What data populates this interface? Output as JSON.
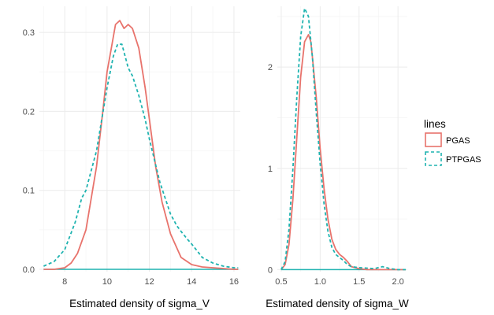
{
  "colors": {
    "PGAS": "#e8736c",
    "PTPGAS": "#1fb3b0"
  },
  "legend": {
    "title": "lines",
    "items": [
      "PGAS",
      "PTPGAS"
    ]
  },
  "chart_data": [
    {
      "type": "line",
      "xlabel": "Estimated density of sigma_V",
      "ylabel": "",
      "xlim": [
        6.8,
        16.3
      ],
      "ylim": [
        -0.003,
        0.333
      ],
      "xticks": [
        8,
        10,
        12,
        14,
        16
      ],
      "xtick_labels": [
        "8",
        "10",
        "12",
        "14",
        "16"
      ],
      "yticks": [
        0.0,
        0.1,
        0.2,
        0.3
      ],
      "ytick_labels": [
        "0.0",
        "0.1",
        "0.2",
        "0.3"
      ],
      "series": [
        {
          "name": "PGAS",
          "style": "solid",
          "x": [
            7.0,
            7.5,
            8.0,
            8.3,
            8.6,
            9.0,
            9.5,
            9.8,
            10.0,
            10.2,
            10.4,
            10.6,
            10.8,
            11.0,
            11.2,
            11.5,
            11.8,
            12.0,
            12.3,
            12.6,
            13.0,
            13.5,
            14.0,
            14.5,
            15.0,
            15.5,
            16.0,
            16.2
          ],
          "y": [
            0.0,
            0.0,
            0.002,
            0.008,
            0.02,
            0.05,
            0.13,
            0.2,
            0.25,
            0.28,
            0.31,
            0.315,
            0.305,
            0.31,
            0.305,
            0.28,
            0.23,
            0.19,
            0.13,
            0.085,
            0.045,
            0.015,
            0.006,
            0.003,
            0.002,
            0.001,
            0.0,
            0.0
          ]
        },
        {
          "name": "PTPGAS",
          "style": "dashed",
          "x": [
            7.0,
            7.5,
            8.0,
            8.5,
            8.8,
            9.0,
            9.5,
            10.0,
            10.3,
            10.5,
            10.7,
            10.9,
            11.0,
            11.2,
            11.5,
            11.8,
            12.0,
            12.5,
            13.0,
            13.3,
            13.5,
            13.8,
            14.0,
            14.3,
            14.5,
            15.0,
            15.5,
            16.0,
            16.2
          ],
          "y": [
            0.004,
            0.01,
            0.025,
            0.06,
            0.09,
            0.1,
            0.15,
            0.23,
            0.27,
            0.285,
            0.285,
            0.265,
            0.255,
            0.245,
            0.22,
            0.19,
            0.165,
            0.11,
            0.07,
            0.055,
            0.048,
            0.038,
            0.032,
            0.022,
            0.015,
            0.008,
            0.004,
            0.002,
            0.002
          ]
        }
      ],
      "baseline": {
        "y": 0,
        "color": "#1fb3b0"
      }
    },
    {
      "type": "line",
      "xlabel": "Estimated density of sigma_W",
      "ylabel": "",
      "xlim": [
        0.45,
        2.12
      ],
      "ylim": [
        -0.02,
        2.6
      ],
      "xticks": [
        0.5,
        1.0,
        1.5,
        2.0
      ],
      "xtick_labels": [
        "0.5",
        "1.0",
        "1.5",
        "2.0"
      ],
      "yticks": [
        0,
        1,
        2
      ],
      "ytick_labels": [
        "0",
        "1",
        "2"
      ],
      "series": [
        {
          "name": "PGAS",
          "style": "solid",
          "x": [
            0.5,
            0.55,
            0.6,
            0.65,
            0.7,
            0.75,
            0.8,
            0.85,
            0.88,
            0.9,
            0.95,
            1.0,
            1.05,
            1.1,
            1.15,
            1.2,
            1.25,
            1.3,
            1.35,
            1.4,
            1.5,
            1.6,
            1.8,
            2.1
          ],
          "y": [
            0.0,
            0.05,
            0.25,
            0.7,
            1.3,
            1.9,
            2.25,
            2.32,
            2.25,
            2.1,
            1.7,
            1.2,
            0.8,
            0.5,
            0.3,
            0.2,
            0.15,
            0.12,
            0.08,
            0.03,
            0.01,
            0.0,
            0.0,
            0.0
          ]
        },
        {
          "name": "PTPGAS",
          "style": "dashed",
          "x": [
            0.5,
            0.55,
            0.6,
            0.65,
            0.7,
            0.75,
            0.8,
            0.85,
            0.9,
            0.95,
            1.0,
            1.05,
            1.1,
            1.15,
            1.2,
            1.25,
            1.3,
            1.35,
            1.4,
            1.5,
            1.6,
            1.7,
            1.8,
            1.9,
            2.0,
            2.1
          ],
          "y": [
            0.0,
            0.08,
            0.4,
            1.0,
            1.7,
            2.3,
            2.58,
            2.5,
            2.1,
            1.55,
            1.05,
            0.65,
            0.38,
            0.22,
            0.15,
            0.12,
            0.09,
            0.05,
            0.03,
            0.02,
            0.015,
            0.01,
            0.03,
            0.01,
            0.0,
            0.0
          ]
        }
      ],
      "baseline": {
        "y": 0,
        "color": "#1fb3b0"
      }
    }
  ]
}
